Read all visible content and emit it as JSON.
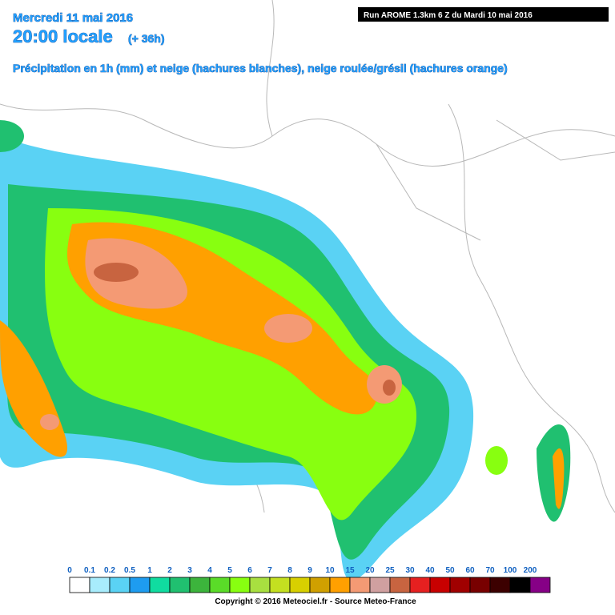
{
  "header": {
    "date": "Mercredi 11 mai 2016",
    "time": "20:00 locale",
    "lead": "(+ 36h)",
    "subtitle": "Précipitation en 1h (mm) et neige (hachures blanches), neige roulée/grésil (hachures orange)"
  },
  "run": "Run AROME 1.3km 6 Z du Mardi 10 mai 2016",
  "legend": {
    "items": [
      {
        "label": "0",
        "color": "#ffffff"
      },
      {
        "label": "0.1",
        "color": "#a8ecfc"
      },
      {
        "label": "0.2",
        "color": "#5ad2f4"
      },
      {
        "label": "0.5",
        "color": "#1e9cf0"
      },
      {
        "label": "1",
        "color": "#10dca0"
      },
      {
        "label": "2",
        "color": "#20c070"
      },
      {
        "label": "3",
        "color": "#3cb43c"
      },
      {
        "label": "4",
        "color": "#5adc28"
      },
      {
        "label": "5",
        "color": "#88ff10"
      },
      {
        "label": "6",
        "color": "#a8e040"
      },
      {
        "label": "7",
        "color": "#c4e020"
      },
      {
        "label": "8",
        "color": "#d8d000"
      },
      {
        "label": "9",
        "color": "#d0a000"
      },
      {
        "label": "10",
        "color": "#ffa000"
      },
      {
        "label": "15",
        "color": "#f49a74"
      },
      {
        "label": "20",
        "color": "#d0a0a0"
      },
      {
        "label": "25",
        "color": "#c86440"
      },
      {
        "label": "30",
        "color": "#e62020"
      },
      {
        "label": "40",
        "color": "#c80000"
      },
      {
        "label": "50",
        "color": "#a00000"
      },
      {
        "label": "60",
        "color": "#780000"
      },
      {
        "label": "70",
        "color": "#3c0000"
      },
      {
        "label": "100",
        "color": "#000000"
      },
      {
        "label": "200",
        "color": "#860086"
      }
    ]
  },
  "copyright": "Copyright © 2016 Meteociel.fr - Source Meteo-France"
}
